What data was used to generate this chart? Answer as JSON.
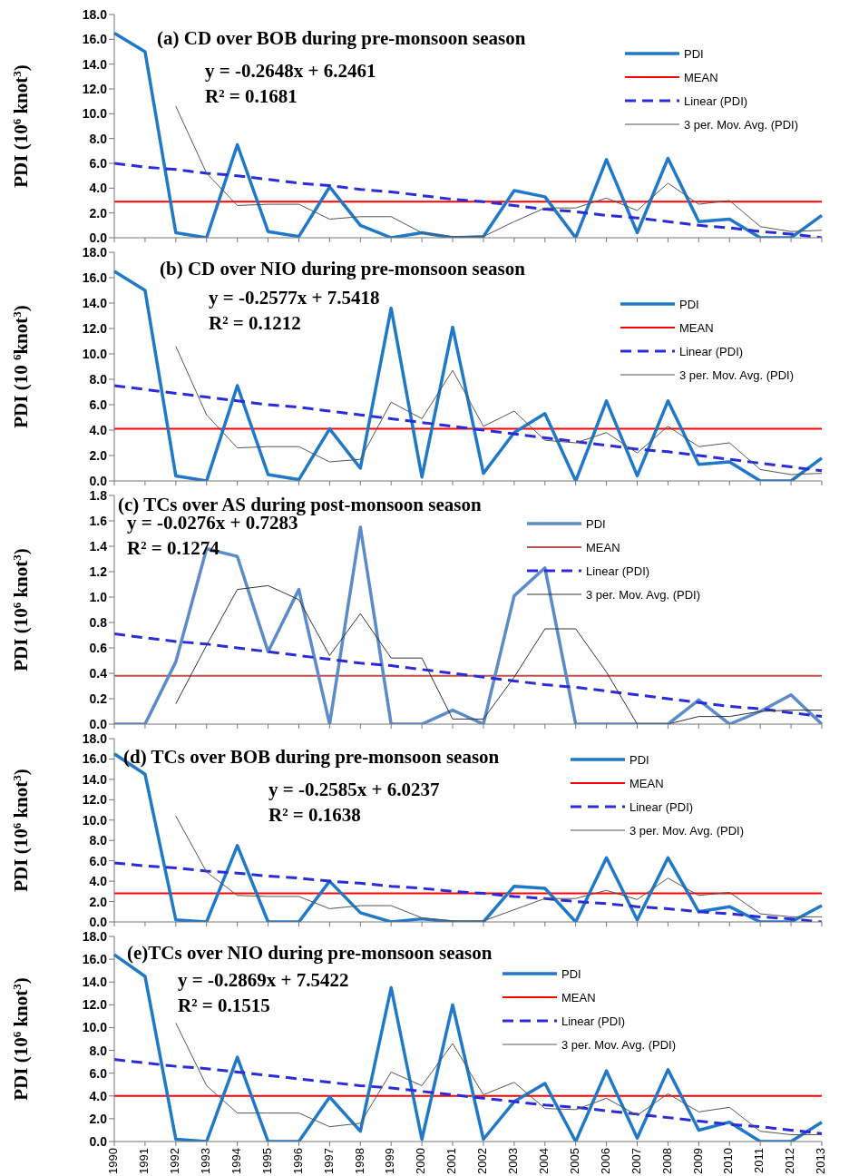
{
  "chart_data": [
    {
      "type": "line",
      "title": "(a) CD over BOB during pre-monsoon season",
      "ylabel": "PDI (10$^{6}$ knot$^{3}$)",
      "annotations": [
        "y = -0.2648x + 6.2461",
        "R² = 0.1681"
      ],
      "categories": [
        "1990",
        "1991",
        "1992",
        "1993",
        "1994",
        "1995",
        "1996",
        "1997",
        "1998",
        "1999",
        "2000",
        "2001",
        "2002",
        "2003",
        "2004",
        "2005",
        "2006",
        "2007",
        "2008",
        "2009",
        "2010",
        "2011",
        "2012",
        "2013"
      ],
      "ylim": [
        0,
        18
      ],
      "yticks": [
        {
          "value": 0,
          "label": "0.0"
        },
        {
          "value": 2,
          "label": "2.0"
        },
        {
          "value": 4,
          "label": "4.0"
        },
        {
          "value": 6,
          "label": "6.0"
        },
        {
          "value": 8,
          "label": "8.0"
        },
        {
          "value": 10,
          "label": "10.0"
        },
        {
          "value": 12,
          "label": "12.0"
        },
        {
          "value": 14,
          "label": "14.0"
        },
        {
          "value": 16,
          "label": "16.0"
        },
        {
          "value": 18,
          "label": "18.0"
        }
      ],
      "tick_labels": "y",
      "legend": "top right",
      "series": [
        {
          "name": "PDI",
          "color": "#1f78c8",
          "line_style": "solid",
          "values": [
            16.5,
            15.0,
            0.4,
            0.0,
            7.5,
            0.5,
            0.1,
            4.1,
            1.0,
            0.0,
            0.4,
            0.0,
            0.1,
            3.8,
            3.3,
            0.0,
            6.3,
            0.4,
            6.4,
            1.3,
            1.5,
            0.0,
            0.0,
            1.8
          ]
        },
        {
          "name": "Linear (PDI)",
          "color": "#2b2bd9",
          "line_style": "dashed",
          "values": [
            6.0,
            5.7,
            5.5,
            5.2,
            5.0,
            4.7,
            4.4,
            4.2,
            3.9,
            3.7,
            3.4,
            3.1,
            2.9,
            2.6,
            2.3,
            2.1,
            1.8,
            1.6,
            1.3,
            1.0,
            0.8,
            0.5,
            0.3,
            0.0
          ]
        },
        {
          "name": "3 per. Mov. Avg. (PDI)",
          "color": "#555555",
          "line_style": "solid",
          "values": [
            null,
            null,
            10.6,
            5.2,
            2.6,
            2.7,
            2.7,
            1.5,
            1.7,
            1.7,
            0.4,
            0.1,
            0.1,
            1.3,
            2.4,
            2.4,
            3.2,
            2.2,
            4.4,
            2.7,
            3.0,
            0.9,
            0.5,
            0.6
          ]
        }
      ],
      "ref_lines": [
        {
          "axis": "y",
          "value": 2.9,
          "label": "MEAN",
          "color": "#ff0000"
        }
      ]
    },
    {
      "type": "line",
      "title": "(b) CD over NIO during pre-monsoon season",
      "ylabel": "PDI (10 $^{6}$knot$^{3}$)",
      "annotations": [
        "y = -0.2577x + 7.5418",
        "R² = 0.1212"
      ],
      "categories": [
        "1990",
        "1991",
        "1992",
        "1993",
        "1994",
        "1995",
        "1996",
        "1997",
        "1998",
        "1999",
        "2000",
        "2001",
        "2002",
        "2003",
        "2004",
        "2005",
        "2006",
        "2007",
        "2008",
        "2009",
        "2010",
        "2011",
        "2012",
        "2013"
      ],
      "ylim": [
        0,
        18
      ],
      "yticks": [
        {
          "value": 0,
          "label": "0.0"
        },
        {
          "value": 2,
          "label": "2.0"
        },
        {
          "value": 4,
          "label": "4.0"
        },
        {
          "value": 6,
          "label": "6.0"
        },
        {
          "value": 8,
          "label": "8.0"
        },
        {
          "value": 10,
          "label": "10.0"
        },
        {
          "value": 12,
          "label": "12.0"
        },
        {
          "value": 14,
          "label": "14.0"
        },
        {
          "value": 16,
          "label": "16.0"
        },
        {
          "value": 18,
          "label": "18.0"
        }
      ],
      "tick_labels": "y",
      "legend": "top right",
      "series": [
        {
          "name": "PDI",
          "color": "#1f78c8",
          "line_style": "solid",
          "values": [
            16.5,
            15.0,
            0.4,
            0.0,
            7.5,
            0.5,
            0.1,
            4.1,
            1.0,
            13.6,
            0.3,
            12.1,
            0.6,
            3.8,
            5.3,
            0.0,
            6.3,
            0.4,
            6.3,
            1.3,
            1.5,
            0.0,
            0.0,
            1.8
          ]
        },
        {
          "name": "Linear (PDI)",
          "color": "#2b2bd9",
          "line_style": "dashed",
          "values": [
            7.5,
            7.2,
            6.9,
            6.6,
            6.3,
            6.0,
            5.8,
            5.5,
            5.2,
            4.9,
            4.6,
            4.3,
            4.0,
            3.7,
            3.4,
            3.1,
            2.8,
            2.5,
            2.3,
            2.0,
            1.7,
            1.4,
            1.1,
            0.8
          ]
        },
        {
          "name": "3 per. Mov. Avg. (PDI)",
          "color": "#555555",
          "line_style": "solid",
          "values": [
            null,
            null,
            10.6,
            5.2,
            2.6,
            2.7,
            2.7,
            1.5,
            1.7,
            6.2,
            4.9,
            8.7,
            4.3,
            5.5,
            3.2,
            3.0,
            3.8,
            2.2,
            4.3,
            2.7,
            3.0,
            0.9,
            0.5,
            0.6
          ]
        }
      ],
      "ref_lines": [
        {
          "axis": "y",
          "value": 4.1,
          "label": "MEAN",
          "color": "#ff0000"
        }
      ]
    },
    {
      "type": "line",
      "title": "(c) TCs over AS during post-monsoon season",
      "ylabel": "PDI (10$^{6}$ knot$^{3}$)",
      "annotations": [
        "y = -0.0276x + 0.7283",
        "R² = 0.1274"
      ],
      "categories": [
        "1990",
        "1991",
        "1992",
        "1993",
        "1994",
        "1995",
        "1996",
        "1997",
        "1998",
        "1999",
        "2000",
        "2001",
        "2002",
        "2003",
        "2004",
        "2005",
        "2006",
        "2007",
        "2008",
        "2009",
        "2010",
        "2011",
        "2012",
        "2013"
      ],
      "ylim": [
        0,
        1.8
      ],
      "yticks": [
        {
          "value": 0,
          "label": "0.0"
        },
        {
          "value": 0.2,
          "label": "0.2"
        },
        {
          "value": 0.4,
          "label": "0.4"
        },
        {
          "value": 0.6,
          "label": "0.6"
        },
        {
          "value": 0.8,
          "label": "0.8"
        },
        {
          "value": 1,
          "label": "1.0"
        },
        {
          "value": 1.2,
          "label": "1.2"
        },
        {
          "value": 1.4,
          "label": "1.4"
        },
        {
          "value": 1.6,
          "label": "1.6"
        },
        {
          "value": 1.8,
          "label": "1.8"
        }
      ],
      "tick_labels": "y",
      "legend": "top right",
      "series": [
        {
          "name": "PDI",
          "color": "#5b8bc9",
          "line_style": "solid",
          "values": [
            0,
            0,
            0.49,
            1.38,
            1.32,
            0.57,
            1.06,
            0,
            1.55,
            0,
            0,
            0.11,
            0,
            1.01,
            1.23,
            0,
            0,
            0,
            0,
            0.19,
            0,
            0.1,
            0.23,
            0
          ]
        },
        {
          "name": "Linear (PDI)",
          "color": "#2b2bd9",
          "line_style": "dashed",
          "values": [
            0.71,
            0.68,
            0.65,
            0.63,
            0.6,
            0.57,
            0.54,
            0.51,
            0.48,
            0.46,
            0.43,
            0.4,
            0.37,
            0.34,
            0.31,
            0.29,
            0.26,
            0.23,
            0.2,
            0.17,
            0.14,
            0.12,
            0.09,
            0.06
          ]
        },
        {
          "name": "3 per. Mov. Avg. (PDI)",
          "color": "#333333",
          "line_style": "solid",
          "values": [
            null,
            null,
            0.16,
            0.62,
            1.06,
            1.09,
            0.98,
            0.54,
            0.87,
            0.52,
            0.52,
            0.04,
            0.04,
            0.37,
            0.75,
            0.75,
            0.41,
            0,
            0,
            0.06,
            0.06,
            0.1,
            0.11,
            0.11
          ]
        }
      ],
      "ref_lines": [
        {
          "axis": "y",
          "value": 0.38,
          "label": "MEAN",
          "color": "#c0504d"
        }
      ]
    },
    {
      "type": "line",
      "title": "(d) TCs over BOB during pre-monsoon season",
      "ylabel": "PDI (10$^{6}$ knot$^{3}$)",
      "annotations": [
        "y = -0.2585x + 6.0237",
        "R² = 0.1638"
      ],
      "categories": [
        "1990",
        "1991",
        "1992",
        "1993",
        "1994",
        "1995",
        "1996",
        "1997",
        "1998",
        "1999",
        "2000",
        "2001",
        "2002",
        "2003",
        "2004",
        "2005",
        "2006",
        "2007",
        "2008",
        "2009",
        "2010",
        "2011",
        "2012",
        "2013"
      ],
      "ylim": [
        0,
        18
      ],
      "yticks": [
        {
          "value": 0,
          "label": "0.0"
        },
        {
          "value": 2,
          "label": "2.0"
        },
        {
          "value": 4,
          "label": "4.0"
        },
        {
          "value": 6,
          "label": "6.0"
        },
        {
          "value": 8,
          "label": "8.0"
        },
        {
          "value": 10,
          "label": "10.0"
        },
        {
          "value": 12,
          "label": "12.0"
        },
        {
          "value": 14,
          "label": "14.0"
        },
        {
          "value": 16,
          "label": "16.0"
        },
        {
          "value": 18,
          "label": "18.0"
        }
      ],
      "tick_labels": "y",
      "legend": "top right",
      "series": [
        {
          "name": "PDI",
          "color": "#1f78c8",
          "line_style": "solid",
          "values": [
            16.5,
            14.5,
            0.2,
            0.0,
            7.5,
            0.0,
            0.0,
            4.0,
            0.9,
            0.0,
            0.3,
            0.0,
            0.0,
            3.5,
            3.3,
            0.0,
            6.3,
            0.2,
            6.3,
            1.0,
            1.5,
            0.0,
            0.0,
            1.6
          ]
        },
        {
          "name": "Linear (PDI)",
          "color": "#2b2bd9",
          "line_style": "dashed",
          "values": [
            5.8,
            5.5,
            5.3,
            5.0,
            4.8,
            4.5,
            4.3,
            4.0,
            3.8,
            3.5,
            3.3,
            3.0,
            2.8,
            2.5,
            2.3,
            2.0,
            1.8,
            1.5,
            1.3,
            1.0,
            0.8,
            0.5,
            0.3,
            0.0
          ]
        },
        {
          "name": "3 per. Mov. Avg. (PDI)",
          "color": "#555555",
          "line_style": "solid",
          "values": [
            null,
            null,
            10.4,
            4.9,
            2.6,
            2.5,
            2.5,
            1.3,
            1.6,
            1.6,
            0.4,
            0.1,
            0.1,
            1.2,
            2.3,
            2.3,
            3.1,
            2.2,
            4.3,
            2.6,
            2.9,
            0.8,
            0.5,
            0.5
          ]
        }
      ],
      "ref_lines": [
        {
          "axis": "y",
          "value": 2.8,
          "label": "MEAN",
          "color": "#ff0000"
        }
      ]
    },
    {
      "type": "line",
      "title": "(e)TCs over NIO during pre-monsoon season",
      "ylabel": "PDI (10$^{6}$ knot$^{3}$)",
      "annotations": [
        "y = -0.2869x + 7.5422",
        "R² = 0.1515"
      ],
      "categories": [
        "1990",
        "1991",
        "1992",
        "1993",
        "1994",
        "1995",
        "1996",
        "1997",
        "1998",
        "1999",
        "2000",
        "2001",
        "2002",
        "2003",
        "2004",
        "2005",
        "2006",
        "2007",
        "2008",
        "2009",
        "2010",
        "2011",
        "2012",
        "2013"
      ],
      "ylim": [
        0,
        18
      ],
      "yticks": [
        {
          "value": 0,
          "label": "0.0"
        },
        {
          "value": 2,
          "label": "2.0"
        },
        {
          "value": 4,
          "label": "4.0"
        },
        {
          "value": 6,
          "label": "6.0"
        },
        {
          "value": 8,
          "label": "8.0"
        },
        {
          "value": 10,
          "label": "10.0"
        },
        {
          "value": 12,
          "label": "12.0"
        },
        {
          "value": 14,
          "label": "14.0"
        },
        {
          "value": 16,
          "label": "16.0"
        },
        {
          "value": 18,
          "label": "18.0"
        }
      ],
      "legend": "top right",
      "series": [
        {
          "name": "PDI",
          "color": "#1f78c8",
          "line_style": "solid",
          "values": [
            16.4,
            14.5,
            0.2,
            0.0,
            7.4,
            0.0,
            0.0,
            3.9,
            0.9,
            13.5,
            0.2,
            12.0,
            0.2,
            3.5,
            5.1,
            0.0,
            6.2,
            0.3,
            6.3,
            1.0,
            1.7,
            0.0,
            0.0,
            1.7
          ]
        },
        {
          "name": "Linear (PDI)",
          "color": "#2b2bd9",
          "line_style": "dashed",
          "values": [
            7.2,
            6.9,
            6.6,
            6.4,
            6.1,
            5.8,
            5.5,
            5.2,
            4.9,
            4.7,
            4.4,
            4.1,
            3.8,
            3.5,
            3.2,
            3.0,
            2.7,
            2.4,
            2.1,
            1.8,
            1.5,
            1.3,
            1.0,
            0.7
          ]
        },
        {
          "name": "3 per. Mov. Avg. (PDI)",
          "color": "#555555",
          "line_style": "solid",
          "values": [
            null,
            null,
            10.4,
            4.9,
            2.5,
            2.5,
            2.5,
            1.3,
            1.6,
            6.1,
            4.9,
            8.6,
            4.1,
            5.2,
            2.9,
            2.8,
            3.8,
            2.3,
            4.2,
            2.6,
            3.0,
            0.9,
            0.6,
            0.6
          ]
        }
      ],
      "ref_lines": [
        {
          "axis": "y",
          "value": 4.0,
          "label": "MEAN",
          "color": "#ff0000"
        }
      ]
    }
  ]
}
